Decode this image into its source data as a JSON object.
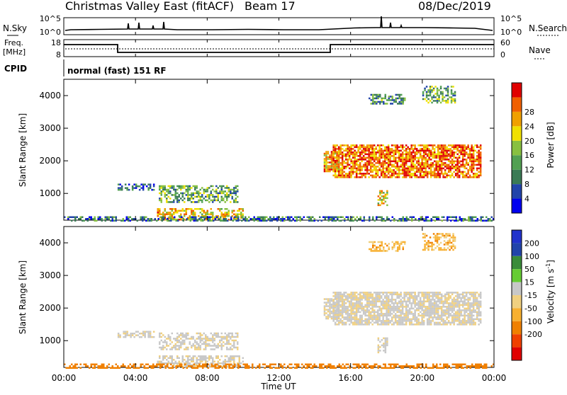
{
  "header": {
    "title": "Christmas Valley East (fitACF)",
    "beam": "Beam 17",
    "date": "08/Dec/2019"
  },
  "noise_panel": {
    "left_label": "N.Sky",
    "right_label": "N.Search",
    "left_ticks": [
      "10^5",
      "10^0"
    ],
    "right_ticks": [
      "10^5",
      "10^0"
    ]
  },
  "freq_panel": {
    "left_label_1": "Freq.",
    "left_label_2": "[MHz]",
    "right_label": "Nave",
    "left_ticks": [
      "18",
      "8"
    ],
    "right_ticks": [
      "60",
      "0"
    ]
  },
  "cpid": {
    "label": "CPID",
    "value": "normal (fast) 151 RF"
  },
  "colors": {
    "velocity_scale": [
      "#e00000",
      "#f04000",
      "#f08000",
      "#f8b030",
      "#f0d080",
      "#c8c8c8",
      "#66cc33",
      "#3a8c3a",
      "#2244aa",
      "#2233cc"
    ],
    "power_scale": [
      "#0000ee",
      "#2244aa",
      "#3a7a55",
      "#52a052",
      "#88c040",
      "#f0e000",
      "#f0a000",
      "#f06000",
      "#e00000"
    ]
  },
  "chart_data": [
    {
      "type": "heatmap",
      "title": "",
      "xlabel": "",
      "ylabel": "Slant Range [km]",
      "x_ticks": [
        "00:00",
        "04:00",
        "08:00",
        "12:00",
        "16:00",
        "20:00",
        "00:00"
      ],
      "xlim_hours": [
        0,
        24
      ],
      "y_ticks": [
        1000,
        2000,
        3000,
        4000
      ],
      "ylim": [
        180,
        4500
      ],
      "colorbar": {
        "label": "Power [dB]",
        "ticks": [
          "4",
          "8",
          "12",
          "16",
          "20",
          "24",
          "28"
        ],
        "range": [
          0,
          30
        ]
      },
      "echo_regions": [
        {
          "t_start": 15.0,
          "t_end": 23.3,
          "r_start": 1500,
          "r_end": 2500,
          "level_db": 24
        },
        {
          "t_start": 14.5,
          "t_end": 15.3,
          "r_start": 1700,
          "r_end": 2300,
          "level_db": 22
        },
        {
          "t_start": 17.0,
          "t_end": 19.0,
          "r_start": 3750,
          "r_end": 4050,
          "level_db": 10
        },
        {
          "t_start": 20.0,
          "t_end": 21.8,
          "r_start": 3800,
          "r_end": 4300,
          "level_db": 12
        },
        {
          "t_start": 17.5,
          "t_end": 18.0,
          "r_start": 650,
          "r_end": 1100,
          "level_db": 18
        },
        {
          "t_start": 5.2,
          "t_end": 10.0,
          "r_start": 220,
          "r_end": 550,
          "level_db": 20
        },
        {
          "t_start": 5.3,
          "t_end": 9.7,
          "r_start": 750,
          "r_end": 1250,
          "level_db": 12
        },
        {
          "t_start": 3.0,
          "t_end": 5.0,
          "r_start": 1100,
          "r_end": 1300,
          "level_db": 6
        },
        {
          "t_start": 0.0,
          "t_end": 24.0,
          "r_start": 180,
          "r_end": 300,
          "level_db": 8
        }
      ]
    },
    {
      "type": "heatmap",
      "title": "",
      "xlabel": "Time UT",
      "ylabel": "Slant Range [km]",
      "x_ticks": [
        "00:00",
        "04:00",
        "08:00",
        "12:00",
        "16:00",
        "20:00",
        "00:00"
      ],
      "xlim_hours": [
        0,
        24
      ],
      "y_ticks": [
        1000,
        2000,
        3000,
        4000
      ],
      "ylim": [
        180,
        4500
      ],
      "colorbar": {
        "label": "Velocity [m s",
        "label_superscript": "-1",
        "label_close": "]",
        "ticks": [
          "200",
          "100",
          "50",
          "15",
          "-15",
          "-50",
          "-100",
          "-200"
        ],
        "range": [
          -250,
          250
        ]
      },
      "echo_regions": [
        {
          "t_start": 15.0,
          "t_end": 23.3,
          "r_start": 1500,
          "r_end": 2500,
          "velocity": 0
        },
        {
          "t_start": 14.5,
          "t_end": 15.3,
          "r_start": 1700,
          "r_end": 2300,
          "velocity": 0
        },
        {
          "t_start": 17.0,
          "t_end": 19.0,
          "r_start": 3750,
          "r_end": 4050,
          "velocity": -20
        },
        {
          "t_start": 20.0,
          "t_end": 21.8,
          "r_start": 3800,
          "r_end": 4300,
          "velocity": -20
        },
        {
          "t_start": 17.5,
          "t_end": 18.0,
          "r_start": 650,
          "r_end": 1100,
          "velocity": 0
        },
        {
          "t_start": 5.2,
          "t_end": 10.0,
          "r_start": 220,
          "r_end": 550,
          "velocity": 0
        },
        {
          "t_start": 5.3,
          "t_end": 9.7,
          "r_start": 750,
          "r_end": 1250,
          "velocity": 0
        },
        {
          "t_start": 3.0,
          "t_end": 5.0,
          "r_start": 1100,
          "r_end": 1300,
          "velocity": 0
        },
        {
          "t_start": 0.0,
          "t_end": 24.0,
          "r_start": 180,
          "r_end": 300,
          "velocity": -60
        }
      ]
    }
  ]
}
